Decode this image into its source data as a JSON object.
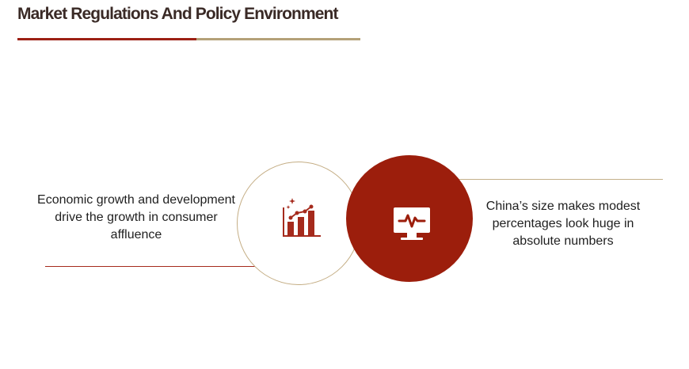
{
  "title": "Market Regulations And Policy Environment",
  "left_item": {
    "text": "Economic growth and development drive the growth in consumer affluence",
    "icon": "growth-chart-icon"
  },
  "right_item": {
    "text": "China’s size makes modest percentages look huge in absolute numbers",
    "icon": "monitor-pulse-icon"
  },
  "colors": {
    "accent_red": "#9c1e0c",
    "accent_gold": "#c4ad84",
    "title_text": "#3a2a26"
  }
}
